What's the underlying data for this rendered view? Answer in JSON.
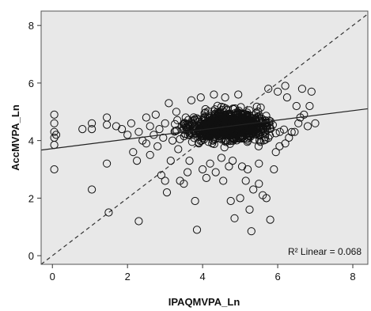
{
  "chart_data": {
    "type": "scatter",
    "xlabel": "IPAQMVPA_Ln",
    "ylabel": "AccMVPA_Ln",
    "xlim": [
      -0.3,
      8.4
    ],
    "ylim": [
      -0.3,
      8.5
    ],
    "x_ticks": [
      0,
      2,
      4,
      6,
      8
    ],
    "y_ticks": [
      0,
      2,
      4,
      6,
      8
    ],
    "grid": false,
    "plot_background": "#e8e8e8",
    "marker_color": "#111111",
    "fit_line": {
      "label": "R² Linear = 0.068",
      "intercept": 3.72,
      "slope": 0.165
    },
    "reference_line": {
      "style": "dashed",
      "intercept": 0,
      "slope": 1
    },
    "points": [
      [
        0.05,
        4.9
      ],
      [
        0.05,
        4.6
      ],
      [
        0.05,
        4.3
      ],
      [
        0.05,
        4.1
      ],
      [
        0.05,
        3.0
      ],
      [
        0.1,
        4.2
      ],
      [
        0.05,
        3.85
      ],
      [
        0.8,
        4.4
      ],
      [
        1.05,
        4.6
      ],
      [
        1.05,
        4.4
      ],
      [
        1.05,
        2.3
      ],
      [
        1.45,
        4.8
      ],
      [
        1.45,
        4.55
      ],
      [
        1.45,
        3.2
      ],
      [
        1.5,
        1.5
      ],
      [
        1.7,
        4.5
      ],
      [
        1.85,
        4.4
      ],
      [
        2.0,
        4.2
      ],
      [
        2.1,
        4.6
      ],
      [
        2.15,
        3.6
      ],
      [
        2.25,
        3.3
      ],
      [
        2.3,
        4.3
      ],
      [
        2.3,
        1.2
      ],
      [
        2.4,
        4.0
      ],
      [
        2.5,
        4.8
      ],
      [
        2.5,
        3.9
      ],
      [
        2.6,
        4.5
      ],
      [
        2.6,
        3.5
      ],
      [
        2.7,
        4.2
      ],
      [
        2.75,
        4.9
      ],
      [
        2.8,
        3.8
      ],
      [
        2.85,
        4.4
      ],
      [
        2.9,
        2.8
      ],
      [
        2.95,
        4.1
      ],
      [
        3.0,
        2.6
      ],
      [
        3.0,
        4.6
      ],
      [
        3.05,
        2.2
      ],
      [
        3.1,
        5.3
      ],
      [
        3.15,
        3.3
      ],
      [
        3.2,
        4.0
      ],
      [
        3.3,
        5.0
      ],
      [
        3.35,
        3.7
      ],
      [
        3.4,
        2.6
      ],
      [
        3.45,
        4.5
      ],
      [
        3.5,
        2.5
      ],
      [
        3.55,
        4.8
      ],
      [
        3.6,
        2.9
      ],
      [
        3.65,
        3.3
      ],
      [
        3.7,
        5.4
      ],
      [
        3.75,
        4.2
      ],
      [
        3.8,
        1.9
      ],
      [
        3.85,
        0.9
      ],
      [
        3.9,
        3.9
      ],
      [
        3.95,
        5.5
      ],
      [
        4.0,
        3.0
      ],
      [
        4.1,
        2.7
      ],
      [
        4.2,
        3.2
      ],
      [
        4.3,
        5.6
      ],
      [
        4.35,
        2.9
      ],
      [
        4.5,
        3.4
      ],
      [
        4.55,
        2.6
      ],
      [
        4.6,
        5.5
      ],
      [
        4.7,
        3.1
      ],
      [
        4.75,
        1.9
      ],
      [
        4.8,
        3.3
      ],
      [
        4.85,
        1.3
      ],
      [
        4.95,
        5.6
      ],
      [
        5.0,
        2.0
      ],
      [
        5.05,
        3.1
      ],
      [
        5.15,
        2.6
      ],
      [
        5.2,
        3.0
      ],
      [
        5.25,
        1.6
      ],
      [
        5.3,
        0.85
      ],
      [
        5.35,
        2.3
      ],
      [
        5.5,
        2.5
      ],
      [
        5.5,
        3.2
      ],
      [
        5.6,
        2.1
      ],
      [
        5.7,
        2.0
      ],
      [
        5.75,
        5.8
      ],
      [
        5.8,
        1.25
      ],
      [
        5.9,
        3.0
      ],
      [
        5.95,
        3.6
      ],
      [
        6.0,
        5.7
      ],
      [
        6.05,
        3.8
      ],
      [
        6.2,
        3.9
      ],
      [
        6.25,
        5.5
      ],
      [
        6.3,
        4.1
      ],
      [
        6.45,
        4.3
      ],
      [
        6.5,
        5.2
      ],
      [
        6.55,
        4.6
      ],
      [
        6.6,
        4.8
      ],
      [
        6.65,
        5.8
      ],
      [
        6.7,
        4.9
      ],
      [
        6.8,
        4.5
      ],
      [
        6.85,
        5.2
      ],
      [
        7.0,
        4.6
      ],
      [
        6.9,
        5.7
      ],
      [
        6.2,
        5.9
      ]
    ]
  }
}
